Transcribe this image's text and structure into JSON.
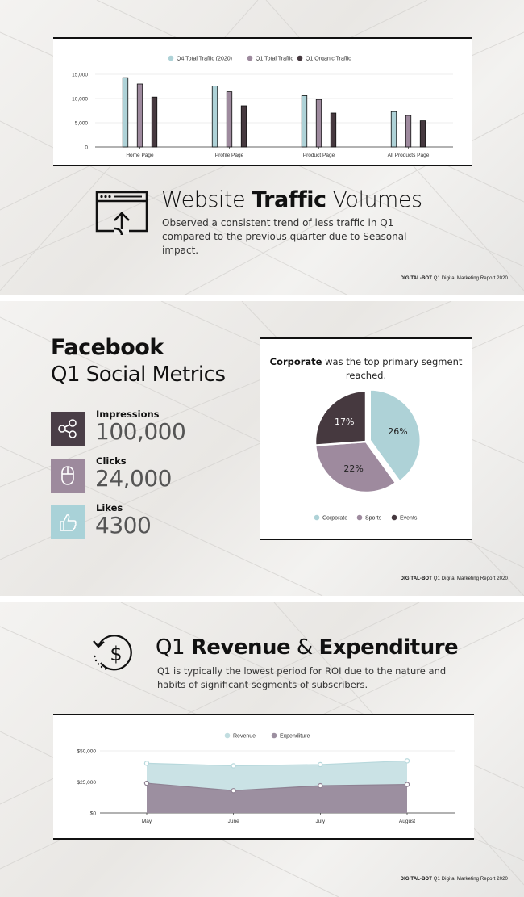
{
  "footer": {
    "brand": "DIGITAL-BOT",
    "text": "Q1 Digital Marketing Report 2020"
  },
  "colors": {
    "q4": "#aed2d7",
    "q1": "#9e8a9e",
    "organic": "#46393f",
    "revenue": "#c1dde0",
    "expenditure": "#9c8fa0"
  },
  "traffic": {
    "title_light": "Website ",
    "title_bold": "Traffic",
    "title_light2": " Volumes",
    "subtitle": "Observed a consistent trend of less traffic in Q1 compared to the previous quarter due to Seasonal impact.",
    "icon": "browser-upload-icon"
  },
  "facebook": {
    "title": "Facebook",
    "subtitle": "Q1 Social Metrics",
    "metrics": [
      {
        "label": "Impressions",
        "value": "100,000",
        "icon": "share-icon",
        "color": "#4a3e47"
      },
      {
        "label": "Clicks",
        "value": "24,000",
        "icon": "mouse-icon",
        "color": "#9d8a9d"
      },
      {
        "label": "Likes",
        "value": "4300",
        "icon": "thumbs-up-icon",
        "color": "#a9d2d8"
      }
    ],
    "pie_title_bold": "Corporate",
    "pie_title_rest": " was the top primary segment reached."
  },
  "revenue": {
    "title_light": "Q1 ",
    "title_bold1": "Revenue",
    "title_amp": " & ",
    "title_bold2": "Expenditure",
    "subtitle": "Q1 is typically the lowest period for ROI due to the nature and habits of significant segments of subscribers.",
    "icon": "dollar-cycle-icon"
  },
  "chart_data": [
    {
      "type": "bar",
      "categories": [
        "Home Page",
        "Profile Page",
        "Product Page",
        "All Products Page"
      ],
      "series": [
        {
          "name": "Q4 Total Traffic (2020)",
          "values": [
            14300,
            12600,
            10600,
            7300
          ]
        },
        {
          "name": "Q1 Total Traffic",
          "values": [
            13000,
            11400,
            9800,
            6500
          ]
        },
        {
          "name": "Q1 Organic Traffic",
          "values": [
            10300,
            8500,
            7000,
            5400
          ]
        }
      ],
      "yticks": [
        "0",
        "5,000",
        "10,000",
        "15,000"
      ],
      "ylim": [
        0,
        15000
      ],
      "legend": "top"
    },
    {
      "type": "pie",
      "labels": [
        "Corporate",
        "Sports",
        "Events"
      ],
      "values": [
        26,
        22,
        17
      ],
      "value_labels": [
        "26%",
        "22%",
        "17%"
      ],
      "legend": "bottom"
    },
    {
      "type": "area",
      "categories": [
        "May",
        "June",
        "July",
        "August"
      ],
      "series": [
        {
          "name": "Revenue",
          "values": [
            40000,
            38000,
            39000,
            42000
          ]
        },
        {
          "name": "Expenditure",
          "values": [
            24000,
            18000,
            22000,
            23000
          ]
        }
      ],
      "yticks": [
        "$0",
        "$25,000",
        "$50,000"
      ],
      "ylim": [
        0,
        50000
      ],
      "legend": "top"
    }
  ]
}
